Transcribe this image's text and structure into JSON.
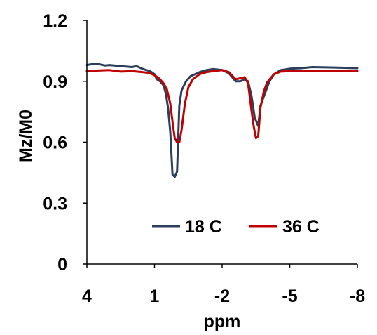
{
  "chart_data": {
    "type": "line",
    "xlabel": "ppm",
    "ylabel": "Mz/M0",
    "xlim": [
      4,
      -8
    ],
    "ylim": [
      0,
      1.2
    ],
    "xticks": [
      "4",
      "1",
      "-2",
      "-5",
      "-8"
    ],
    "xtick_values": [
      4,
      1,
      -2,
      -5,
      -8
    ],
    "yticks": [
      "0",
      "0.3",
      "0.6",
      "0.9",
      "1.2"
    ],
    "ytick_values": [
      0,
      0.3,
      0.6,
      0.9,
      1.2
    ],
    "grid": false,
    "legend_position": "bottom-center",
    "series": [
      {
        "name": "18 C",
        "color": "#2b3f5c",
        "points": [
          [
            4.0,
            0.98
          ],
          [
            3.75,
            0.985
          ],
          [
            3.5,
            0.985
          ],
          [
            3.2,
            0.978
          ],
          [
            3.0,
            0.98
          ],
          [
            2.5,
            0.975
          ],
          [
            2.0,
            0.97
          ],
          [
            1.8,
            0.975
          ],
          [
            1.5,
            0.96
          ],
          [
            1.2,
            0.95
          ],
          [
            1.0,
            0.935
          ],
          [
            0.9,
            0.91
          ],
          [
            0.75,
            0.9
          ],
          [
            0.6,
            0.88
          ],
          [
            0.5,
            0.84
          ],
          [
            0.4,
            0.77
          ],
          [
            0.3,
            0.65
          ],
          [
            0.2,
            0.44
          ],
          [
            0.1,
            0.43
          ],
          [
            0.0,
            0.455
          ],
          [
            -0.1,
            0.78
          ],
          [
            -0.2,
            0.855
          ],
          [
            -0.4,
            0.9
          ],
          [
            -0.6,
            0.925
          ],
          [
            -0.8,
            0.935
          ],
          [
            -1.0,
            0.945
          ],
          [
            -1.3,
            0.955
          ],
          [
            -1.6,
            0.96
          ],
          [
            -2.0,
            0.955
          ],
          [
            -2.3,
            0.94
          ],
          [
            -2.6,
            0.9
          ],
          [
            -2.8,
            0.9
          ],
          [
            -3.0,
            0.91
          ],
          [
            -3.15,
            0.9
          ],
          [
            -3.3,
            0.83
          ],
          [
            -3.45,
            0.72
          ],
          [
            -3.6,
            0.68
          ],
          [
            -3.7,
            0.78
          ],
          [
            -3.9,
            0.84
          ],
          [
            -4.1,
            0.9
          ],
          [
            -4.3,
            0.935
          ],
          [
            -4.6,
            0.955
          ],
          [
            -5.0,
            0.962
          ],
          [
            -5.5,
            0.965
          ],
          [
            -6.0,
            0.97
          ],
          [
            -7.0,
            0.968
          ],
          [
            -8.0,
            0.965
          ]
        ]
      },
      {
        "name": "36 C",
        "color": "#c00000",
        "points": [
          [
            4.0,
            0.95
          ],
          [
            3.5,
            0.953
          ],
          [
            3.0,
            0.955
          ],
          [
            2.5,
            0.948
          ],
          [
            2.0,
            0.95
          ],
          [
            1.5,
            0.945
          ],
          [
            1.2,
            0.94
          ],
          [
            1.0,
            0.93
          ],
          [
            0.8,
            0.915
          ],
          [
            0.6,
            0.89
          ],
          [
            0.45,
            0.86
          ],
          [
            0.3,
            0.79
          ],
          [
            0.2,
            0.7
          ],
          [
            0.1,
            0.62
          ],
          [
            0.0,
            0.6
          ],
          [
            -0.1,
            0.6
          ],
          [
            -0.2,
            0.66
          ],
          [
            -0.35,
            0.79
          ],
          [
            -0.5,
            0.87
          ],
          [
            -0.7,
            0.91
          ],
          [
            -1.0,
            0.935
          ],
          [
            -1.3,
            0.945
          ],
          [
            -1.6,
            0.95
          ],
          [
            -2.0,
            0.955
          ],
          [
            -2.3,
            0.945
          ],
          [
            -2.6,
            0.91
          ],
          [
            -2.8,
            0.915
          ],
          [
            -3.0,
            0.92
          ],
          [
            -3.15,
            0.89
          ],
          [
            -3.3,
            0.76
          ],
          [
            -3.4,
            0.68
          ],
          [
            -3.5,
            0.62
          ],
          [
            -3.6,
            0.63
          ],
          [
            -3.7,
            0.77
          ],
          [
            -3.85,
            0.85
          ],
          [
            -4.0,
            0.895
          ],
          [
            -4.3,
            0.935
          ],
          [
            -4.6,
            0.948
          ],
          [
            -5.0,
            0.95
          ],
          [
            -6.0,
            0.952
          ],
          [
            -7.0,
            0.95
          ],
          [
            -8.0,
            0.95
          ]
        ]
      }
    ]
  }
}
